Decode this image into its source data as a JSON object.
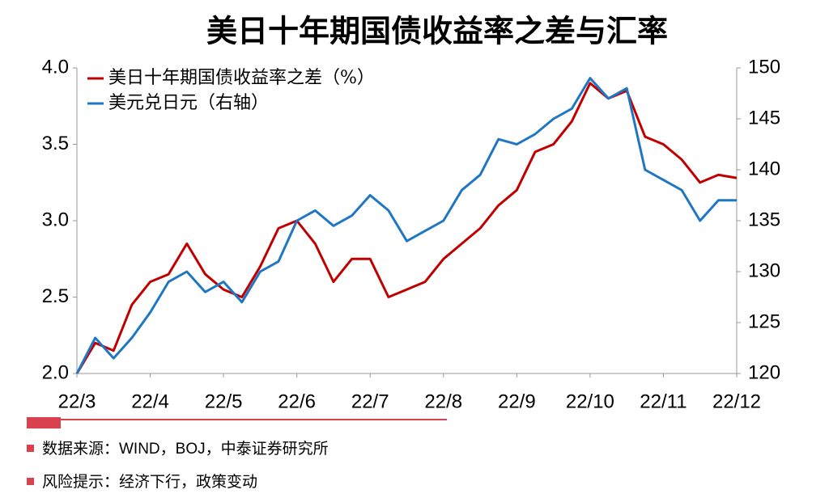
{
  "chart_data": {
    "type": "line",
    "title": "美日十年期国债收益率之差与汇率",
    "x": [
      0,
      0.25,
      0.5,
      0.75,
      1,
      1.25,
      1.5,
      1.75,
      2,
      2.25,
      2.5,
      2.75,
      3,
      3.25,
      3.5,
      3.75,
      4,
      4.25,
      4.5,
      4.75,
      5,
      5.25,
      5.5,
      5.75,
      6,
      6.25,
      6.5,
      6.75,
      7,
      7.25,
      7.5,
      7.75,
      8,
      8.25,
      8.5,
      8.75,
      9
    ],
    "xlim": [
      0,
      9
    ],
    "xticks": [
      {
        "value": 0,
        "label": "22/3"
      },
      {
        "value": 1,
        "label": "22/4"
      },
      {
        "value": 2,
        "label": "22/5"
      },
      {
        "value": 3,
        "label": "22/6"
      },
      {
        "value": 4,
        "label": "22/7"
      },
      {
        "value": 5,
        "label": "22/8"
      },
      {
        "value": 6,
        "label": "22/9"
      },
      {
        "value": 7,
        "label": "22/10"
      },
      {
        "value": 8,
        "label": "22/11"
      },
      {
        "value": 9,
        "label": "22/12"
      }
    ],
    "ylim": [
      2,
      4
    ],
    "yticks": [
      {
        "value": 2,
        "label": "2.0"
      },
      {
        "value": 2.5,
        "label": "2.5"
      },
      {
        "value": 3,
        "label": "3.0"
      },
      {
        "value": 3.5,
        "label": "3.5"
      },
      {
        "value": 4,
        "label": "4.0"
      }
    ],
    "y2lim": [
      120,
      150
    ],
    "y2ticks": [
      120,
      125,
      130,
      135,
      140,
      145,
      150
    ],
    "legend": "upper-left",
    "series": [
      {
        "name": "美日十年期国债收益率之差（%）",
        "color": "#c00000",
        "values": [
          2.0,
          2.2,
          2.15,
          2.45,
          2.6,
          2.65,
          2.85,
          2.65,
          2.55,
          2.5,
          2.7,
          2.95,
          3.0,
          2.85,
          2.6,
          2.75,
          2.75,
          2.5,
          2.55,
          2.6,
          2.75,
          2.85,
          2.95,
          3.1,
          3.2,
          3.45,
          3.5,
          3.65,
          3.9,
          3.8,
          3.85,
          3.55,
          3.5,
          3.4,
          3.25,
          3.3,
          3.28
        ]
      },
      {
        "name": "美元兑日元（右轴）",
        "color": "#1f77c4",
        "axis": "y2",
        "values": [
          120,
          123.5,
          121.5,
          123.5,
          126,
          129,
          130,
          128,
          129,
          127,
          130,
          131,
          135,
          136,
          134.5,
          135.5,
          137.5,
          136,
          133,
          134,
          135,
          138,
          139.5,
          143,
          142.5,
          143.5,
          145,
          146,
          149,
          147,
          148,
          140,
          139,
          138,
          135,
          137,
          137
        ]
      }
    ]
  },
  "footnotes": [
    "数据来源：WIND，BOJ，中泰证券研究所",
    "风险提示：经济下行，政策变动"
  ]
}
